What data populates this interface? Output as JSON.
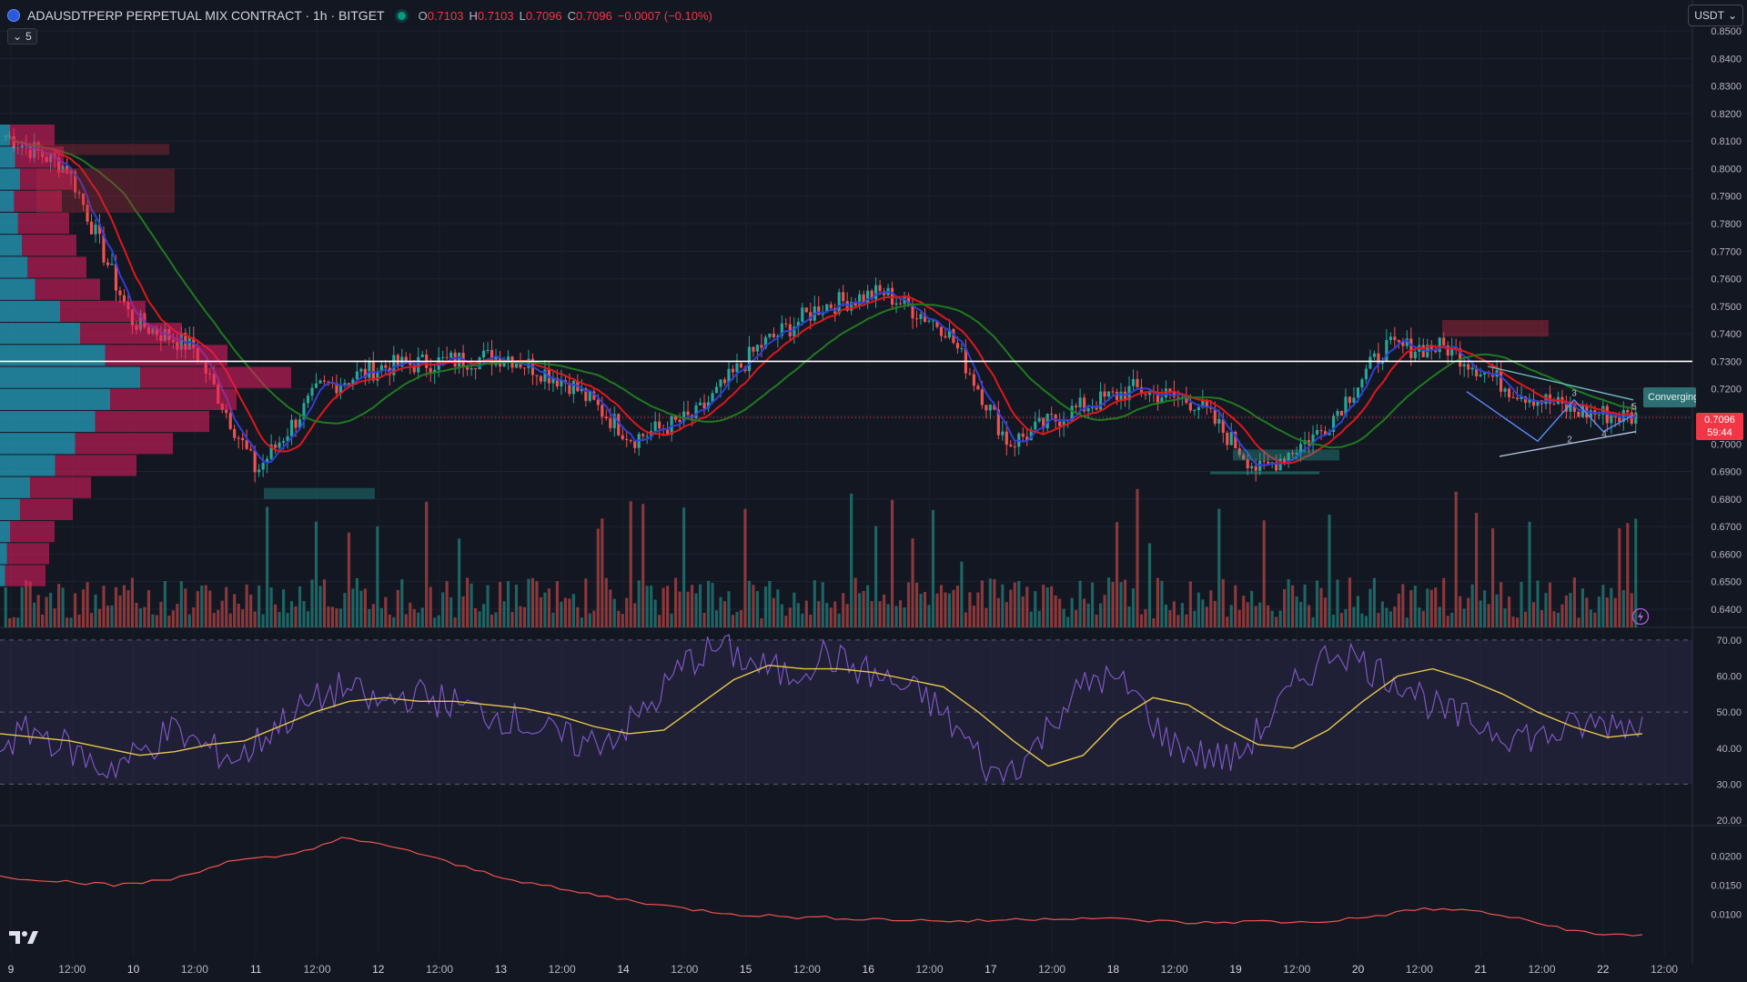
{
  "header": {
    "symbol_title": "ADAUSDTPERP PERPETUAL MIX CONTRACT · 1h · BITGET",
    "ohlc": [
      {
        "key": "O",
        "value": "0.7103"
      },
      {
        "key": "H",
        "value": "0.7103"
      },
      {
        "key": "L",
        "value": "0.7096"
      },
      {
        "key": "C",
        "value": "0.7096"
      }
    ],
    "change": "−0.0007 (−0.10%)",
    "indicators_toggle_label": "5",
    "currency_label": "USDT"
  },
  "colors": {
    "background": "#131722",
    "bull": "#26a69a",
    "bear": "#ef5350",
    "ma_blue": "#2f3fd6",
    "ma_red": "#e0161d",
    "ma_green": "#1f7a1f",
    "rsi": "#7e57c2",
    "rsi_ma": "#e6c84a",
    "price_tag": "#f23645"
  },
  "last_price": {
    "value": "0.7096",
    "countdown": "59:44"
  },
  "horizontal_line_price": 0.73,
  "pattern_label": "Converging",
  "wave_labels": [
    "2",
    "3",
    "4",
    "5"
  ],
  "price_axis": {
    "ticks": [
      "0.8500",
      "0.8400",
      "0.8300",
      "0.8200",
      "0.8100",
      "0.8000",
      "0.7900",
      "0.7800",
      "0.7700",
      "0.7600",
      "0.7500",
      "0.7400",
      "0.7300",
      "0.7200",
      "0.7100",
      "0.7000",
      "0.6900",
      "0.6800",
      "0.6700",
      "0.6600",
      "0.6500",
      "0.6400"
    ]
  },
  "rsi_axis": {
    "ticks": [
      "70.00",
      "60.00",
      "50.00",
      "40.00",
      "30.00",
      "20.00"
    ]
  },
  "vol_axis": {
    "ticks": [
      "0.0200",
      "0.0150",
      "0.0100"
    ]
  },
  "time_axis": {
    "labels": [
      "9",
      "12:00",
      "10",
      "12:00",
      "11",
      "12:00",
      "12",
      "12:00",
      "13",
      "12:00",
      "14",
      "12:00",
      "15",
      "12:00",
      "16",
      "12:00",
      "17",
      "12:00",
      "18",
      "12:00",
      "19",
      "12:00",
      "20",
      "12:00",
      "21",
      "12:00",
      "22",
      "12:00"
    ]
  },
  "chart_data": [
    {
      "type": "line",
      "name": "price-panel",
      "description_series": "close",
      "x": [
        "9",
        "12:00",
        "10",
        "12:00",
        "11",
        "12:00",
        "12",
        "12:00",
        "13",
        "12:00",
        "14",
        "12:00",
        "15",
        "12:00",
        "16",
        "12:00",
        "17",
        "12:00",
        "18",
        "12:00",
        "19",
        "12:00",
        "20",
        "12:00",
        "21",
        "12:00",
        "22"
      ],
      "series": [
        {
          "values": [
            0.812,
            0.8,
            0.745,
            0.735,
            0.69,
            0.72,
            0.728,
            0.73,
            0.732,
            0.722,
            0.702,
            0.71,
            0.735,
            0.75,
            0.755,
            0.742,
            0.7,
            0.712,
            0.72,
            0.715,
            0.69,
            0.705,
            0.735,
            0.735,
            0.72,
            0.712,
            0.7096
          ]
        }
      ],
      "ylim": [
        0.638,
        0.852
      ],
      "grid": true
    },
    {
      "type": "line",
      "name": "rsi-panel",
      "series": [
        {
          "values": [
            41,
            45,
            40,
            34,
            38,
            45,
            40,
            37,
            46,
            52,
            57,
            52,
            55,
            53,
            50,
            48,
            44,
            41,
            44,
            52,
            64,
            68,
            63,
            60,
            66,
            62,
            58,
            54,
            44,
            32,
            38,
            52,
            60,
            56,
            42,
            38,
            37,
            48,
            60,
            68,
            62,
            58,
            50,
            47,
            44,
            43,
            46,
            47
          ]
        },
        {
          "values": [
            44,
            43,
            42,
            40,
            38,
            39,
            41,
            42,
            46,
            50,
            53,
            54,
            53,
            53,
            52,
            51,
            49,
            46,
            44,
            45,
            52,
            59,
            63,
            62,
            62,
            61,
            59,
            57,
            50,
            42,
            35,
            38,
            48,
            54,
            52,
            46,
            41,
            40,
            45,
            53,
            60,
            62,
            59,
            55,
            50,
            46,
            43,
            44
          ]
        }
      ],
      "reference_lines": [
        70,
        50,
        30
      ],
      "ylim": [
        20,
        72
      ]
    },
    {
      "type": "line",
      "name": "lower-indicator-panel",
      "series": [
        {
          "values": [
            0.0165,
            0.0158,
            0.015,
            0.016,
            0.019,
            0.02,
            0.023,
            0.0215,
            0.0185,
            0.016,
            0.014,
            0.0125,
            0.011,
            0.01,
            0.0095,
            0.0093,
            0.009,
            0.0088,
            0.0092,
            0.0094,
            0.009,
            0.0085,
            0.0088,
            0.0086,
            0.0095,
            0.011,
            0.0105,
            0.0085,
            0.0065
          ]
        }
      ],
      "ylim": [
        0.004,
        0.024
      ]
    }
  ]
}
